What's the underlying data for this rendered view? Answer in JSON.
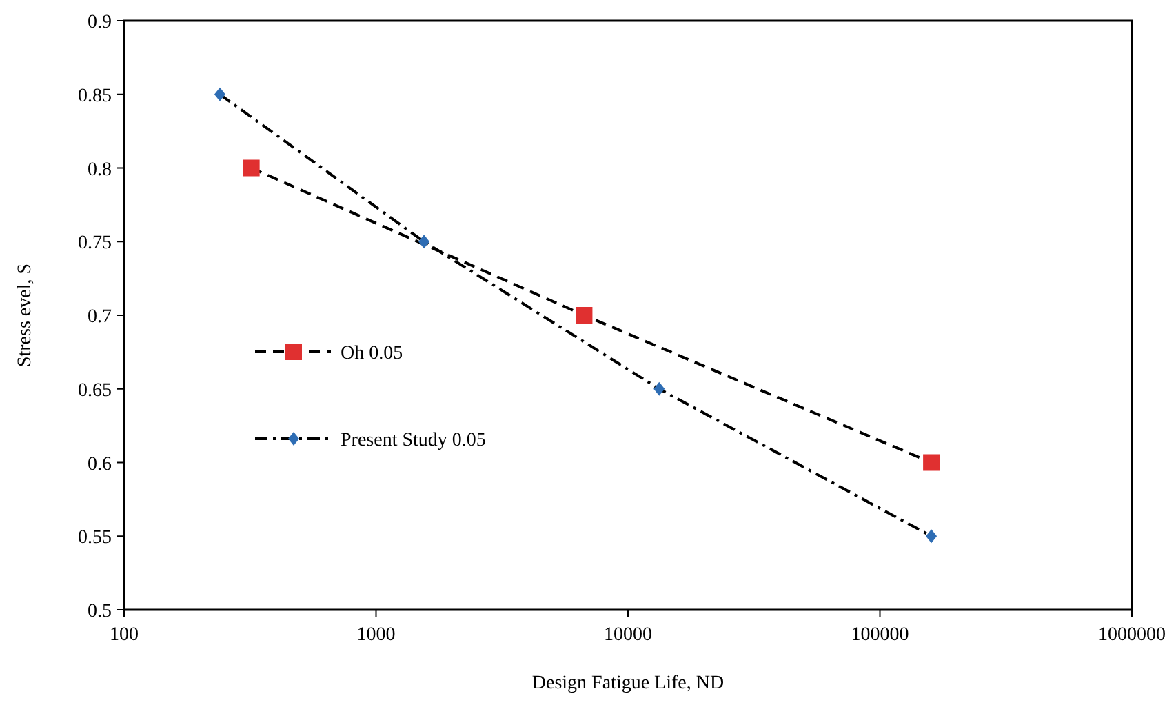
{
  "chart_data": {
    "type": "line",
    "xlabel": "Design Fatigue Life, ND",
    "ylabel": "Stress evel, S",
    "log": "x",
    "xlim": [
      100,
      1000000
    ],
    "xticks": [
      100,
      1000,
      10000,
      100000,
      1000000
    ],
    "ylim": [
      0.5,
      0.9
    ],
    "yticks": [
      0.5,
      0.55,
      0.6,
      0.65,
      0.7,
      0.75,
      0.8,
      0.85,
      0.9
    ],
    "grid": false,
    "legend": "left",
    "series": [
      {
        "name": "Oh 0.05",
        "color": "#e03030",
        "marker": "square",
        "line_style": "dashed",
        "x": [
          320,
          6700,
          160000
        ],
        "values": [
          0.8,
          0.7,
          0.6
        ]
      },
      {
        "name": "Present Study 0.05",
        "color": "#2e6db4",
        "marker": "diamond",
        "line_style": "dotted",
        "x": [
          240,
          1550,
          13300,
          160000
        ],
        "values": [
          0.85,
          0.75,
          0.65,
          0.55
        ]
      }
    ]
  }
}
